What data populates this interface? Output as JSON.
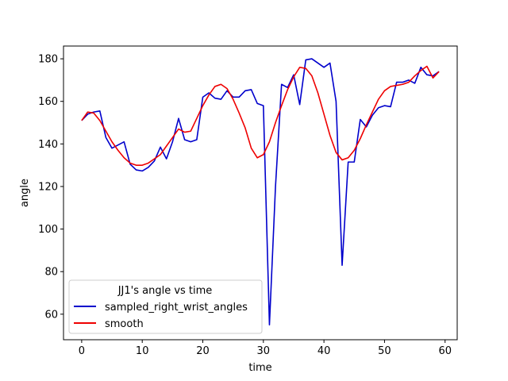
{
  "chart_data": {
    "type": "line",
    "xlabel": "time",
    "ylabel": "angle",
    "xlim": [
      -3,
      62
    ],
    "ylim": [
      48,
      186
    ],
    "xticks": [
      0,
      10,
      20,
      30,
      40,
      50,
      60
    ],
    "yticks": [
      60,
      80,
      100,
      120,
      140,
      160,
      180
    ],
    "legend": {
      "title": "JJ1's angle vs time",
      "placement": "lower-left"
    },
    "x": [
      0,
      1,
      2,
      3,
      4,
      5,
      6,
      7,
      8,
      9,
      10,
      11,
      12,
      13,
      14,
      15,
      16,
      17,
      18,
      19,
      20,
      21,
      22,
      23,
      24,
      25,
      26,
      27,
      28,
      29,
      30,
      31,
      32,
      33,
      34,
      35,
      36,
      37,
      38,
      39,
      40,
      41,
      42,
      43,
      44,
      45,
      46,
      47,
      48,
      49,
      50,
      51,
      52,
      53,
      54,
      55,
      56,
      57,
      58,
      59
    ],
    "series": [
      {
        "name": "sampled_right_wrist_angles",
        "color": "#0000cc",
        "values": [
          151,
          154,
          155,
          155.5,
          143,
          138,
          139.5,
          141,
          130.5,
          127.8,
          127.3,
          129,
          132,
          138.5,
          133,
          141,
          152,
          142,
          141,
          142,
          162,
          164,
          161.5,
          161,
          165,
          162,
          162,
          165,
          165.5,
          159,
          158,
          55,
          120,
          168,
          166.5,
          172.5,
          158.5,
          179.5,
          180,
          178,
          176,
          178,
          160,
          83,
          131.5,
          131.5,
          151.5,
          148,
          153.5,
          157,
          158,
          157.5,
          169,
          169,
          170,
          168.5,
          176,
          172.5,
          172,
          174
        ]
      },
      {
        "name": "smooth",
        "color": "#ee0000",
        "values": [
          151,
          155,
          154.5,
          151,
          146,
          141,
          137,
          133.5,
          131,
          130,
          130,
          131,
          133,
          135,
          139,
          143,
          147,
          145.5,
          146,
          152,
          158,
          163,
          167,
          168,
          166,
          161,
          154.5,
          147.5,
          138,
          133.5,
          135,
          141,
          150,
          158,
          165.5,
          171.5,
          176,
          175.5,
          172,
          164,
          154,
          144,
          136,
          132.5,
          133.5,
          137,
          142.5,
          149,
          155,
          161,
          165,
          167,
          167.5,
          168,
          169,
          172,
          174.5,
          176.5,
          171,
          174
        ]
      }
    ]
  }
}
